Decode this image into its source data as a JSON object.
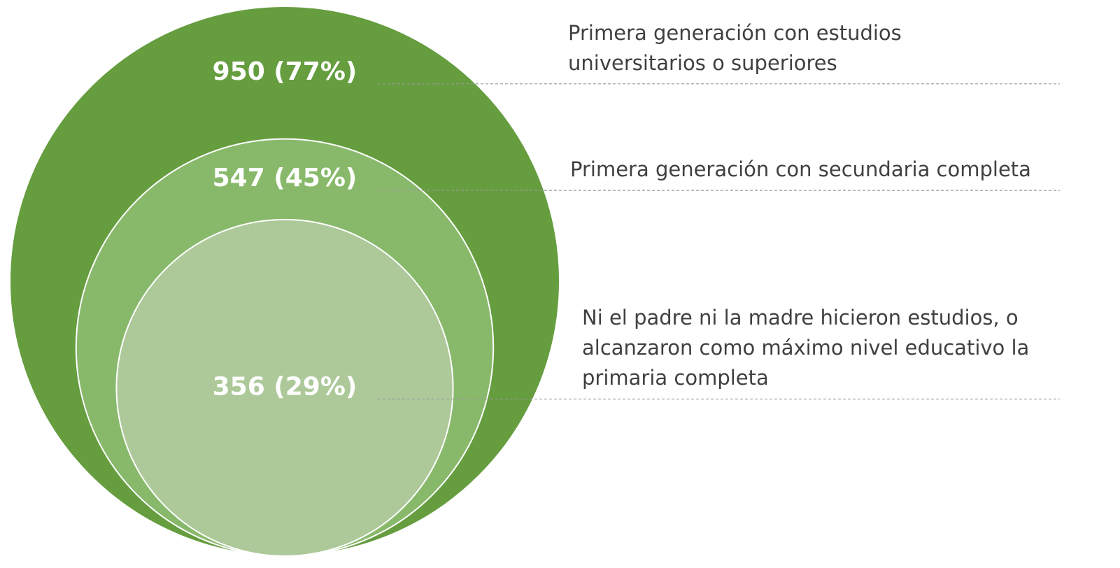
{
  "chart_data": {
    "type": "nested_circles",
    "categories": [
      "Primera generación con estudios universitarios o superiores",
      "Primera generación con secundaria completa",
      "Ni el padre ni la madre hicieron estudios, o alcanzaron como máximo nivel educativo la primaria completa"
    ],
    "values": [
      950,
      547,
      356
    ],
    "value_labels": [
      "950 (77%)",
      "547 (45%)",
      "356 (29%)"
    ],
    "colors": [
      "#659d3f",
      "#88b96b",
      "#adc99a"
    ]
  }
}
